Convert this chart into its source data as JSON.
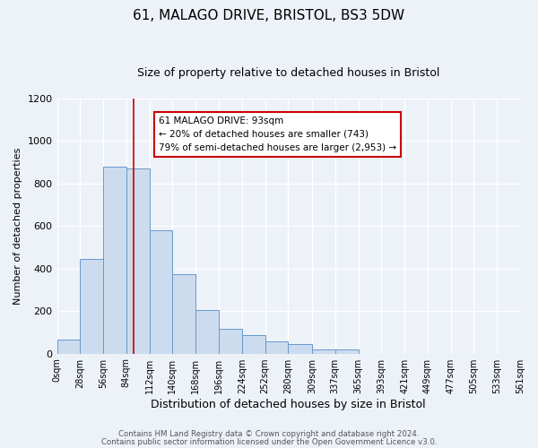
{
  "title": "61, MALAGO DRIVE, BRISTOL, BS3 5DW",
  "subtitle": "Size of property relative to detached houses in Bristol",
  "xlabel": "Distribution of detached houses by size in Bristol",
  "ylabel": "Number of detached properties",
  "bin_edges": [
    0,
    28,
    56,
    84,
    112,
    140,
    168,
    196,
    224,
    252,
    280,
    309,
    337,
    365,
    393,
    421,
    449,
    477,
    505,
    533,
    561
  ],
  "bar_heights": [
    65,
    445,
    880,
    870,
    580,
    375,
    205,
    115,
    88,
    58,
    45,
    20,
    18,
    0,
    0,
    0,
    0,
    0,
    0,
    0
  ],
  "bar_color": "#ccdcee",
  "bar_edge_color": "#6699cc",
  "property_size": 93,
  "vline_color": "#cc0000",
  "annotation_line1": "61 MALAGO DRIVE: 93sqm",
  "annotation_line2": "← 20% of detached houses are smaller (743)",
  "annotation_line3": "79% of semi-detached houses are larger (2,953) →",
  "annotation_box_color": "#ffffff",
  "annotation_box_edge": "#cc0000",
  "ylim": [
    0,
    1200
  ],
  "yticks": [
    0,
    200,
    400,
    600,
    800,
    1000,
    1200
  ],
  "tick_labels": [
    "0sqm",
    "28sqm",
    "56sqm",
    "84sqm",
    "112sqm",
    "140sqm",
    "168sqm",
    "196sqm",
    "224sqm",
    "252sqm",
    "280sqm",
    "309sqm",
    "337sqm",
    "365sqm",
    "393sqm",
    "421sqm",
    "449sqm",
    "477sqm",
    "505sqm",
    "533sqm",
    "561sqm"
  ],
  "footer_line1": "Contains HM Land Registry data © Crown copyright and database right 2024.",
  "footer_line2": "Contains public sector information licensed under the Open Government Licence v3.0.",
  "background_color": "#edf2f9",
  "grid_color": "#ffffff",
  "title_fontsize": 11,
  "subtitle_fontsize": 9,
  "ylabel_fontsize": 8,
  "xlabel_fontsize": 9
}
